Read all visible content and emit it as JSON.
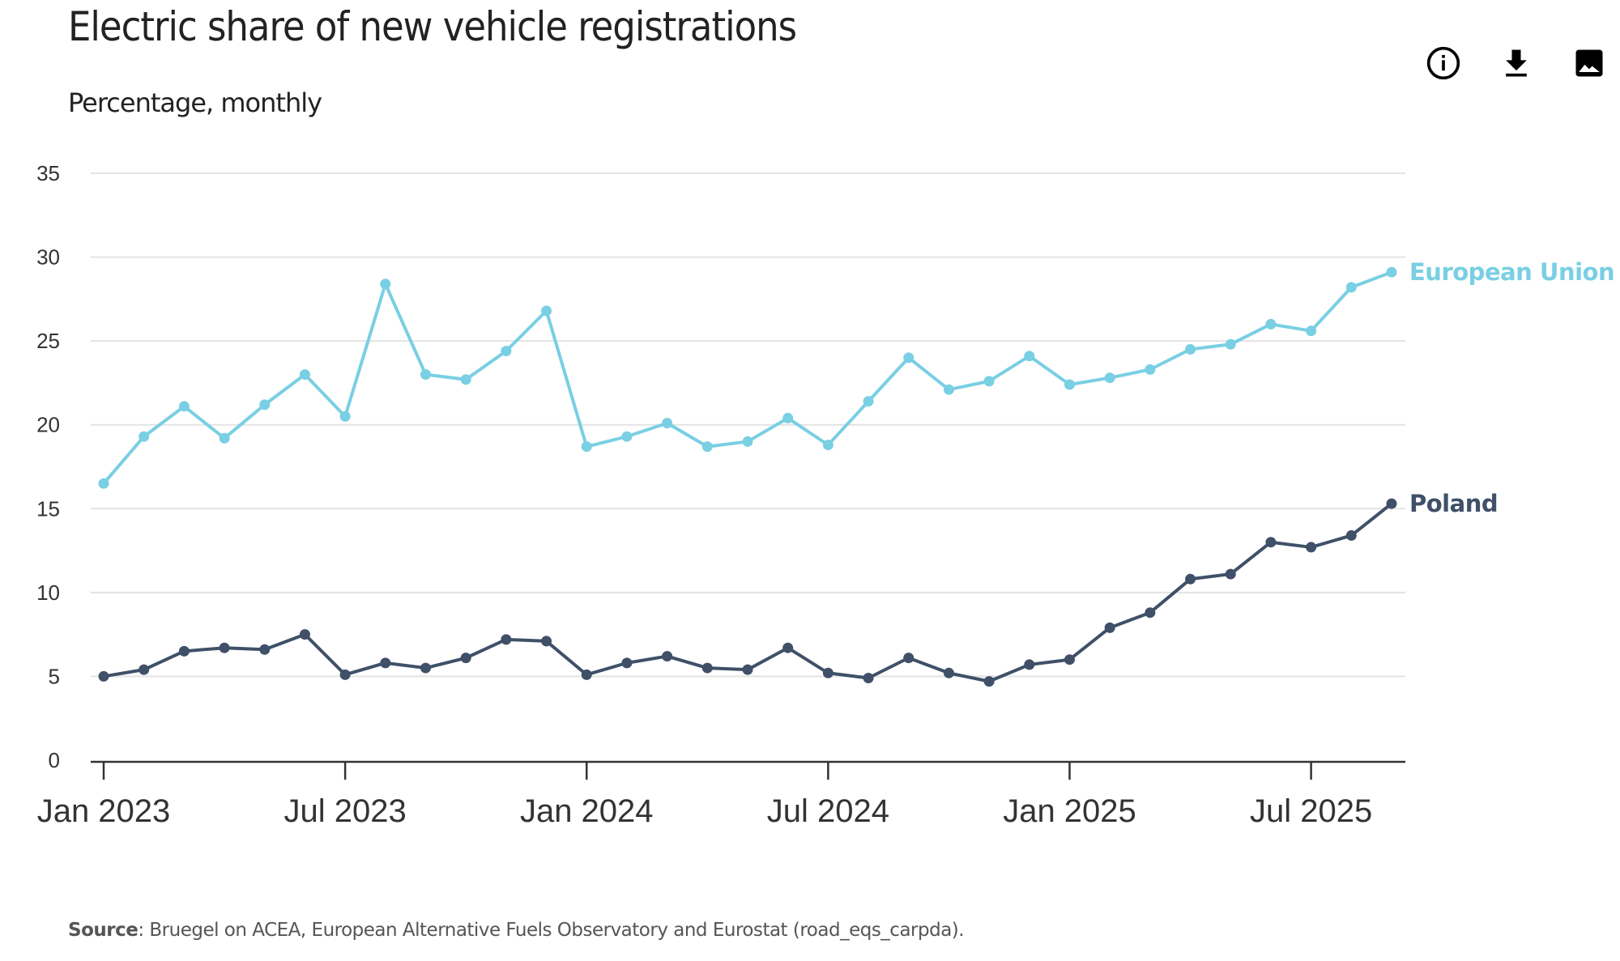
{
  "header": {
    "title": "Electric share of new vehicle registrations",
    "subtitle": "Percentage, monthly"
  },
  "toolbar": {
    "icons": [
      "info-icon",
      "download-icon",
      "image-icon"
    ]
  },
  "footer": {
    "source_label": "Source",
    "source_text": ": Bruegel on ACEA, European Alternative Fuels Observatory and Eurostat (road_eqs_carpda)."
  },
  "chart_data": {
    "type": "line",
    "title": "Electric share of new vehicle registrations",
    "subtitle": "Percentage, monthly",
    "xlabel": "",
    "ylabel": "",
    "ylim": [
      0,
      35
    ],
    "yticks": [
      0,
      5,
      10,
      15,
      20,
      25,
      30,
      35
    ],
    "xticks": [
      "Jan 2023",
      "Jul 2023",
      "Jan 2024",
      "Jul 2024",
      "Jan 2025",
      "Jul 2025"
    ],
    "x": [
      "2023-01",
      "2023-02",
      "2023-03",
      "2023-04",
      "2023-05",
      "2023-06",
      "2023-07",
      "2023-08",
      "2023-09",
      "2023-10",
      "2023-11",
      "2023-12",
      "2024-01",
      "2024-02",
      "2024-03",
      "2024-04",
      "2024-05",
      "2024-06",
      "2024-07",
      "2024-08",
      "2024-09",
      "2024-10",
      "2024-11",
      "2024-12",
      "2025-01",
      "2025-02",
      "2025-03",
      "2025-04",
      "2025-05",
      "2025-06",
      "2025-07",
      "2025-08",
      "2025-09"
    ],
    "grid": "horizontal",
    "legend": "inline-right",
    "series": [
      {
        "name": "European Union",
        "color": "#79cfe3",
        "values": [
          16.5,
          19.3,
          21.1,
          19.2,
          21.2,
          23.0,
          20.5,
          28.4,
          23.0,
          22.7,
          24.4,
          26.8,
          18.7,
          19.3,
          20.1,
          18.7,
          19.0,
          20.4,
          18.8,
          21.4,
          24.0,
          22.1,
          22.6,
          24.1,
          22.4,
          22.8,
          23.3,
          24.5,
          24.8,
          26.0,
          25.6,
          28.2,
          29.1
        ]
      },
      {
        "name": "Poland",
        "color": "#3f5068",
        "values": [
          5.0,
          5.4,
          6.5,
          6.7,
          6.6,
          7.5,
          5.1,
          5.8,
          5.5,
          6.1,
          7.2,
          7.1,
          5.1,
          5.8,
          6.2,
          5.5,
          5.4,
          6.7,
          5.2,
          4.9,
          6.1,
          5.2,
          4.7,
          5.7,
          6.0,
          7.9,
          8.8,
          10.8,
          11.1,
          13.0,
          12.7,
          13.4,
          15.3
        ]
      }
    ]
  }
}
